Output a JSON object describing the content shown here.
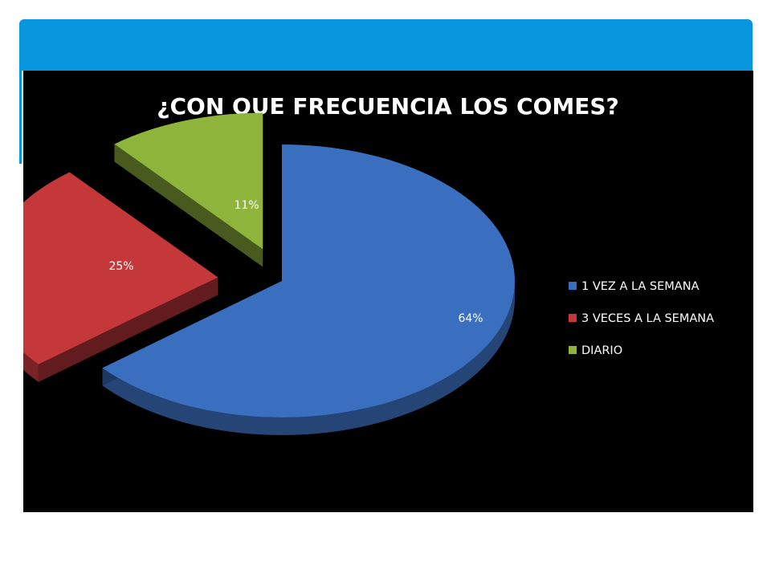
{
  "chart_data": {
    "type": "pie",
    "title": "¿CON QUE FRECUENCIA LOS COMES?",
    "legend_position": "right",
    "slices": [
      {
        "name": "1 VEZ A LA SEMANA",
        "value": 64,
        "label": "64%",
        "color": "#3a6fbf"
      },
      {
        "name": "3 VECES A LA SEMANA",
        "value": 25,
        "label": "25%",
        "color": "#c4383a"
      },
      {
        "name": "DIARIO",
        "value": 11,
        "label": "11%",
        "color": "#8fb43c"
      }
    ]
  },
  "colors": {
    "header_bar": "#0795dd",
    "chart_background": "#000000"
  }
}
